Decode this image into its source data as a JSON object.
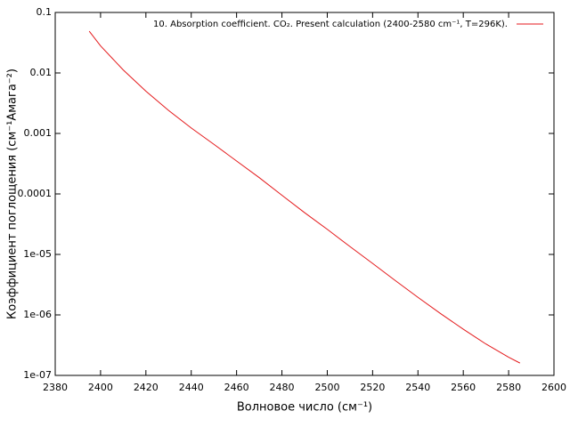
{
  "chart_data": {
    "type": "line",
    "xlabel": "Волновое число (см⁻¹)",
    "ylabel": "Коэффициент поглощения (см⁻¹Амага⁻²)",
    "xlim": [
      2380,
      2600
    ],
    "xticks": [
      2380,
      2400,
      2420,
      2440,
      2460,
      2480,
      2500,
      2520,
      2540,
      2560,
      2580,
      2600
    ],
    "ylim": [
      1e-07,
      0.1
    ],
    "yscale": "log",
    "yticks": [
      {
        "value": 1e-07,
        "label": "1e-07"
      },
      {
        "value": 1e-06,
        "label": "1e-06"
      },
      {
        "value": 1e-05,
        "label": "1e-05"
      },
      0.0001,
      0.001,
      0.01,
      0.1
    ],
    "grid": false,
    "legend": "top-right",
    "x": [
      2395,
      2400,
      2410,
      2420,
      2430,
      2440,
      2450,
      2460,
      2470,
      2480,
      2490,
      2500,
      2510,
      2520,
      2530,
      2540,
      2550,
      2560,
      2570,
      2580,
      2585
    ],
    "series": [
      {
        "name": "10. Absorption coefficient. CO₂. Present calculation (2400-2580 cm⁻¹, T=296K).",
        "color": "#e41a1c",
        "values": [
          0.049,
          0.028,
          0.0112,
          0.005,
          0.0024,
          0.00123,
          0.00066,
          0.00035,
          0.000186,
          9.5e-05,
          4.9e-05,
          2.6e-05,
          1.35e-05,
          7.1e-06,
          3.7e-06,
          1.95e-06,
          1.05e-06,
          5.8e-07,
          3.3e-07,
          2e-07,
          1.6e-07
        ]
      }
    ]
  }
}
